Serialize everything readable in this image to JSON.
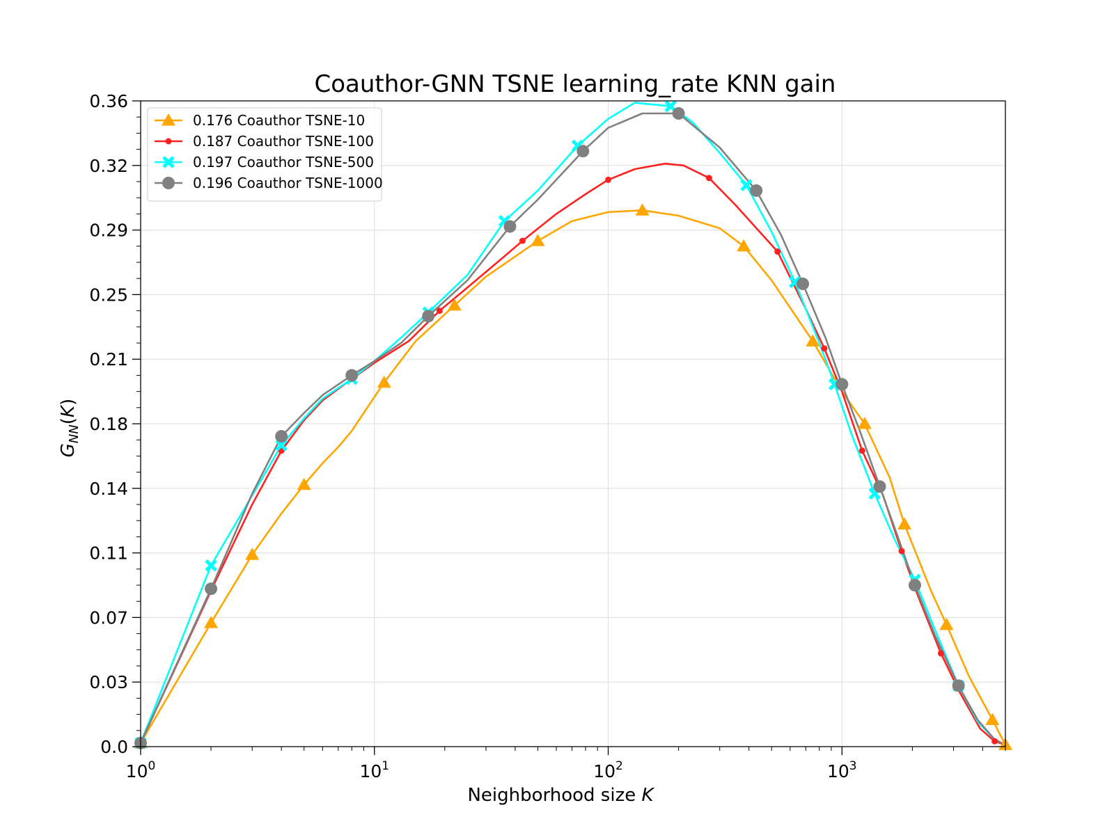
{
  "chart_data": {
    "type": "line",
    "title": "Coauthor-GNN TSNE learning_rate KNN gain",
    "xlabel": "Neighborhood size K",
    "ylabel": "G_NN(K)",
    "x_scale": "log",
    "xlim": [
      1,
      5000
    ],
    "ylim": [
      0,
      0.36
    ],
    "x_ticks": [
      {
        "value": 1,
        "base": "10",
        "exp": "0"
      },
      {
        "value": 10,
        "base": "10",
        "exp": "1"
      },
      {
        "value": 100,
        "base": "10",
        "exp": "2"
      },
      {
        "value": 1000,
        "base": "10",
        "exp": "3"
      }
    ],
    "y_ticks": [
      {
        "value": 0.0,
        "label": "0.0"
      },
      {
        "value": 0.036,
        "label": "0.03"
      },
      {
        "value": 0.072,
        "label": "0.07"
      },
      {
        "value": 0.108,
        "label": "0.11"
      },
      {
        "value": 0.144,
        "label": "0.14"
      },
      {
        "value": 0.18,
        "label": "0.18"
      },
      {
        "value": 0.216,
        "label": "0.21"
      },
      {
        "value": 0.252,
        "label": "0.25"
      },
      {
        "value": 0.288,
        "label": "0.29"
      },
      {
        "value": 0.324,
        "label": "0.32"
      },
      {
        "value": 0.36,
        "label": "0.36"
      }
    ],
    "grid": true,
    "legend_position": "top-left",
    "series": [
      {
        "name": "0.176 Coauthor TSNE-10",
        "color": "#FFA500",
        "marker": "triangle",
        "x": [
          1,
          2,
          3,
          4,
          5,
          6,
          7,
          8,
          11,
          15,
          22,
          30,
          50,
          70,
          100,
          140,
          200,
          300,
          380,
          500,
          750,
          1000,
          1250,
          1600,
          1850,
          2400,
          2800,
          3500,
          4400,
          5000
        ],
        "y": [
          0.002,
          0.069,
          0.107,
          0.13,
          0.146,
          0.158,
          0.167,
          0.176,
          0.203,
          0.226,
          0.246,
          0.262,
          0.282,
          0.293,
          0.298,
          0.299,
          0.296,
          0.289,
          0.279,
          0.26,
          0.226,
          0.198,
          0.18,
          0.15,
          0.124,
          0.087,
          0.068,
          0.039,
          0.015,
          0.001
        ]
      },
      {
        "name": "0.187 Coauthor TSNE-100",
        "color": "#FF2020",
        "marker": "dot",
        "x": [
          1,
          2,
          3,
          4,
          5,
          6,
          8,
          10,
          14,
          19,
          25,
          35,
          43,
          60,
          80,
          100,
          130,
          175,
          210,
          270,
          350,
          530,
          700,
          840,
          1000,
          1220,
          1500,
          1800,
          2100,
          2650,
          3200,
          3900,
          4500,
          5000
        ],
        "y": [
          0.002,
          0.087,
          0.135,
          0.165,
          0.182,
          0.193,
          0.205,
          0.214,
          0.226,
          0.243,
          0.256,
          0.272,
          0.282,
          0.297,
          0.308,
          0.316,
          0.322,
          0.325,
          0.324,
          0.317,
          0.302,
          0.276,
          0.244,
          0.222,
          0.198,
          0.165,
          0.14,
          0.109,
          0.085,
          0.052,
          0.03,
          0.01,
          0.003,
          0.001
        ]
      },
      {
        "name": "0.197 Coauthor TSNE-500",
        "color": "#00FFFF",
        "marker": "x",
        "x": [
          1,
          2,
          3,
          4,
          5,
          6,
          8,
          10,
          13,
          17,
          25,
          36,
          50,
          74,
          100,
          130,
          185,
          230,
          300,
          390,
          500,
          630,
          800,
          930,
          1100,
          1380,
          1700,
          2050,
          2500,
          3150,
          3800,
          4500,
          5000
        ],
        "y": [
          0.002,
          0.101,
          0.14,
          0.168,
          0.183,
          0.194,
          0.205,
          0.215,
          0.228,
          0.242,
          0.263,
          0.293,
          0.31,
          0.335,
          0.35,
          0.359,
          0.357,
          0.348,
          0.331,
          0.313,
          0.287,
          0.259,
          0.225,
          0.202,
          0.174,
          0.141,
          0.114,
          0.093,
          0.065,
          0.034,
          0.014,
          0.004,
          0.001
        ]
      },
      {
        "name": "0.196 Coauthor TSNE-1000",
        "color": "#808080",
        "marker": "circle",
        "x": [
          1,
          2,
          3,
          4,
          5,
          6,
          8,
          10,
          13,
          17,
          25,
          38,
          50,
          78,
          100,
          140,
          200,
          300,
          430,
          550,
          680,
          850,
          1000,
          1200,
          1450,
          1700,
          2050,
          2500,
          3150,
          3800,
          4500,
          5000
        ],
        "y": [
          0.002,
          0.088,
          0.141,
          0.173,
          0.186,
          0.196,
          0.207,
          0.215,
          0.225,
          0.24,
          0.26,
          0.29,
          0.305,
          0.332,
          0.345,
          0.353,
          0.353,
          0.334,
          0.31,
          0.285,
          0.258,
          0.228,
          0.202,
          0.175,
          0.145,
          0.12,
          0.09,
          0.062,
          0.034,
          0.015,
          0.004,
          0.001
        ]
      }
    ],
    "markers": [
      {
        "series": 0,
        "x": [
          1,
          2,
          3,
          5,
          11,
          22,
          50,
          140,
          380,
          750,
          1250,
          1850,
          2800,
          4400,
          5000
        ],
        "y": [
          0.002,
          0.069,
          0.107,
          0.146,
          0.203,
          0.246,
          0.282,
          0.299,
          0.279,
          0.226,
          0.18,
          0.124,
          0.068,
          0.015,
          0.001
        ]
      },
      {
        "series": 1,
        "x": [
          1,
          4,
          8,
          19,
          43,
          100,
          270,
          530,
          840,
          1220,
          1800,
          2650,
          4500
        ],
        "y": [
          0.002,
          0.165,
          0.205,
          0.243,
          0.282,
          0.316,
          0.317,
          0.276,
          0.222,
          0.165,
          0.109,
          0.052,
          0.003
        ]
      },
      {
        "series": 2,
        "x": [
          1,
          2,
          4,
          8,
          17,
          36,
          74,
          185,
          390,
          630,
          930,
          1380,
          2050,
          3150
        ],
        "y": [
          0.002,
          0.101,
          0.168,
          0.205,
          0.242,
          0.293,
          0.335,
          0.357,
          0.313,
          0.259,
          0.202,
          0.141,
          0.093,
          0.034
        ]
      },
      {
        "series": 3,
        "x": [
          1,
          2,
          4,
          8,
          17,
          38,
          78,
          200,
          430,
          680,
          1000,
          1450,
          2050,
          3150
        ],
        "y": [
          0.002,
          0.088,
          0.173,
          0.207,
          0.24,
          0.29,
          0.332,
          0.353,
          0.31,
          0.258,
          0.202,
          0.145,
          0.09,
          0.034
        ]
      }
    ]
  }
}
